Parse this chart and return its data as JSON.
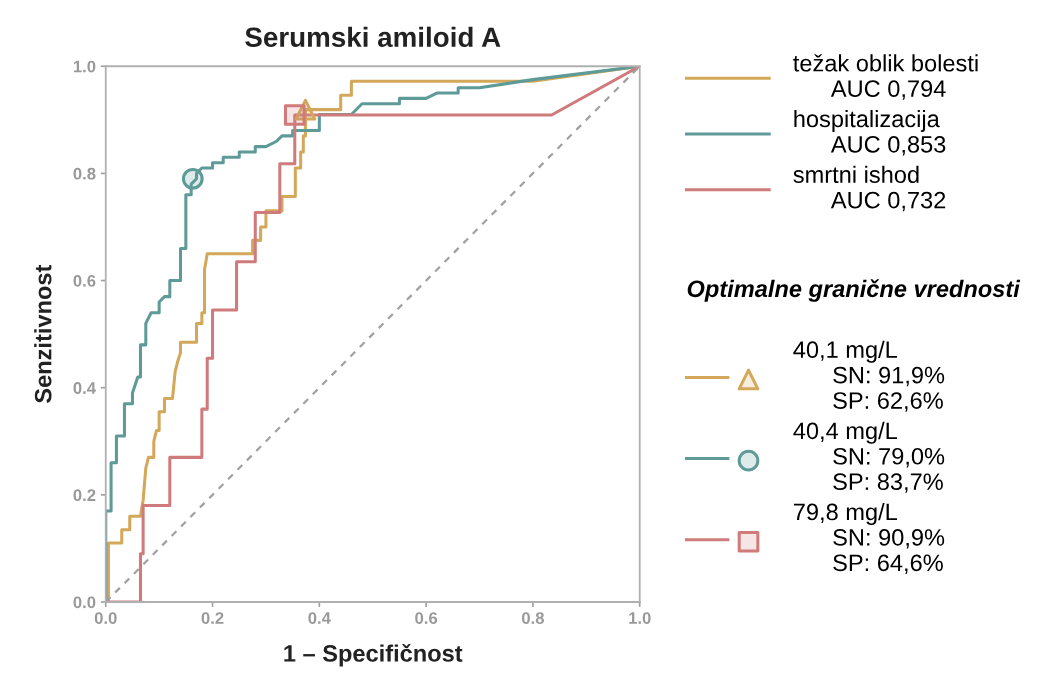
{
  "chart_data": {
    "type": "line",
    "title": "Serumski amiloid A",
    "xlabel": "1 – Specifičnost",
    "ylabel": "Senzitivnost",
    "legend_title": "Optimalne granične vrednosti",
    "legend": "right",
    "grid": false,
    "line_style": "solid",
    "marker": "none",
    "xlim": [
      0,
      1
    ],
    "ylim": [
      0,
      1
    ],
    "xticks": [
      {
        "value": 0,
        "label": "0.0"
      },
      {
        "value": 0.2,
        "label": "0.2"
      },
      {
        "value": 0.4,
        "label": "0.4"
      },
      {
        "value": 0.6,
        "label": "0.6"
      },
      {
        "value": 0.8,
        "label": "0.8"
      },
      {
        "value": 1,
        "label": "1.0"
      }
    ],
    "yticks": [
      {
        "value": 0,
        "label": "0.0"
      },
      {
        "value": 0.2,
        "label": "0.2"
      },
      {
        "value": 0.4,
        "label": "0.4"
      },
      {
        "value": 0.6,
        "label": "0.6"
      },
      {
        "value": 0.8,
        "label": "0.8"
      },
      {
        "value": 1,
        "label": "1.0"
      }
    ],
    "series": [
      {
        "name": "težak oblik bolesti\n      AUC 0,794",
        "color": "#d4a85a",
        "x": [
          0,
          0.005,
          0.005,
          0.03,
          0.03,
          0.045,
          0.045,
          0.065,
          0.07,
          0.075,
          0.08,
          0.09,
          0.09,
          0.095,
          0.1,
          0.1,
          0.11,
          0.11,
          0.125,
          0.13,
          0.135,
          0.14,
          0.14,
          0.17,
          0.17,
          0.18,
          0.18,
          0.185,
          0.185,
          0.19,
          0.275,
          0.275,
          0.29,
          0.29,
          0.3,
          0.3,
          0.33,
          0.33,
          0.355,
          0.355,
          0.365,
          0.365,
          0.37,
          0.37,
          0.374,
          0.374,
          0.44,
          0.44,
          0.46,
          0.46,
          0.8,
          1
        ],
        "values": [
          0,
          0,
          0.11,
          0.11,
          0.135,
          0.135,
          0.16,
          0.16,
          0.19,
          0.25,
          0.27,
          0.27,
          0.3,
          0.32,
          0.32,
          0.355,
          0.355,
          0.38,
          0.38,
          0.43,
          0.45,
          0.465,
          0.485,
          0.485,
          0.52,
          0.52,
          0.54,
          0.54,
          0.62,
          0.65,
          0.65,
          0.675,
          0.675,
          0.7,
          0.7,
          0.73,
          0.73,
          0.757,
          0.757,
          0.81,
          0.81,
          0.84,
          0.84,
          0.87,
          0.87,
          0.919,
          0.919,
          0.946,
          0.946,
          0.972,
          0.972,
          1
        ]
      },
      {
        "name": "hospitalizacija\n      AUC 0,853",
        "color": "#5e9a98",
        "x": [
          0,
          0,
          0.01,
          0.01,
          0.02,
          0.02,
          0.035,
          0.035,
          0.05,
          0.05,
          0.06,
          0.065,
          0.065,
          0.075,
          0.075,
          0.085,
          0.1,
          0.1,
          0.11,
          0.12,
          0.12,
          0.14,
          0.14,
          0.15,
          0.15,
          0.16,
          0.16,
          0.17,
          0.17,
          0.18,
          0.2,
          0.2,
          0.22,
          0.22,
          0.25,
          0.25,
          0.28,
          0.28,
          0.3,
          0.32,
          0.33,
          0.35,
          0.35,
          0.4,
          0.4,
          0.46,
          0.48,
          0.55,
          0.55,
          0.6,
          0.62,
          0.66,
          0.66,
          0.7,
          0.8,
          1
        ],
        "values": [
          0,
          0.17,
          0.17,
          0.26,
          0.26,
          0.31,
          0.31,
          0.37,
          0.37,
          0.39,
          0.42,
          0.42,
          0.48,
          0.48,
          0.52,
          0.54,
          0.54,
          0.56,
          0.57,
          0.57,
          0.6,
          0.6,
          0.66,
          0.66,
          0.76,
          0.76,
          0.78,
          0.79,
          0.8,
          0.81,
          0.81,
          0.82,
          0.82,
          0.83,
          0.83,
          0.84,
          0.84,
          0.85,
          0.85,
          0.86,
          0.87,
          0.87,
          0.88,
          0.88,
          0.91,
          0.91,
          0.93,
          0.93,
          0.94,
          0.94,
          0.95,
          0.95,
          0.96,
          0.96,
          0.975,
          1
        ]
      },
      {
        "name": "smrtni ishod\n      AUC 0,732",
        "color": "#cf7b7b",
        "x": [
          0,
          0.065,
          0.065,
          0.07,
          0.07,
          0.12,
          0.12,
          0.18,
          0.18,
          0.19,
          0.19,
          0.2,
          0.2,
          0.245,
          0.245,
          0.28,
          0.28,
          0.326,
          0.326,
          0.354,
          0.354,
          0.835,
          1
        ],
        "values": [
          0,
          0,
          0.09,
          0.09,
          0.18,
          0.18,
          0.27,
          0.27,
          0.36,
          0.36,
          0.455,
          0.455,
          0.545,
          0.545,
          0.635,
          0.635,
          0.727,
          0.727,
          0.818,
          0.818,
          0.909,
          0.909,
          1
        ]
      },
      {
        "color": "#a0a0a0",
        "line_style": "dashed",
        "x": [
          0,
          1
        ],
        "values": [
          0,
          1
        ]
      },
      {
        "type": "scatter",
        "name": "40,1 mg/L\n      SN: 91,9%\n      SP: 62,6%",
        "color": "#d4a85a",
        "marker": "triangle",
        "x": [
          0.374
        ],
        "values": [
          0.919
        ]
      },
      {
        "type": "scatter",
        "name": "40,4 mg/L\n      SN: 79,0%\n      SP: 83,7%",
        "color": "#5e9a98",
        "marker": "circle",
        "x": [
          0.163
        ],
        "values": [
          0.79
        ]
      },
      {
        "type": "scatter",
        "name": "79,8 mg/L\n      SN: 90,9%\n      SP: 64,6%",
        "color": "#cf7b7b",
        "marker": "square",
        "x": [
          0.354
        ],
        "values": [
          0.909
        ]
      }
    ]
  }
}
